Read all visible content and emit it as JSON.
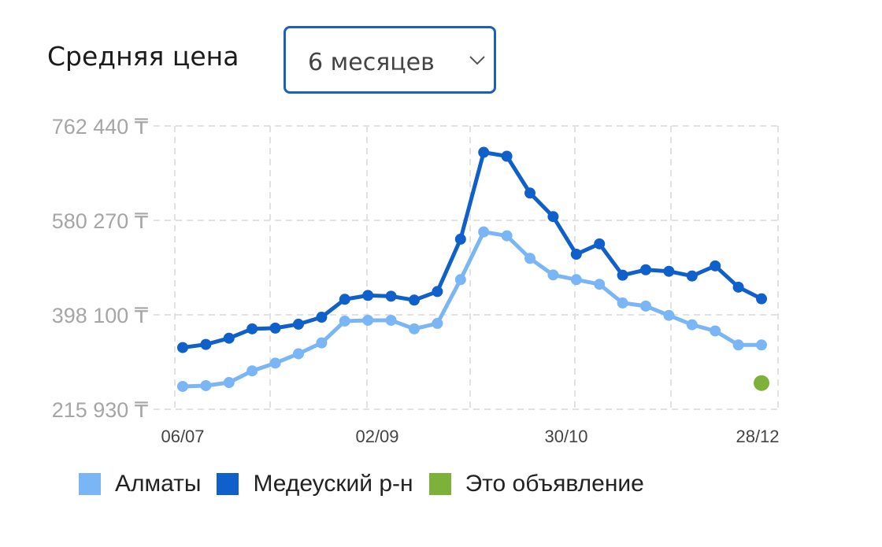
{
  "header": {
    "title": "Средняя цена",
    "period_select": {
      "value": "6 месяцев"
    }
  },
  "colors": {
    "almaty": "#7ab6f5",
    "medeu": "#1060cc",
    "listing": "#7cb23a",
    "select_border": "#1b5fbf",
    "grid": "#e2e2e2"
  },
  "chart_data": {
    "type": "line",
    "title": "Средняя цена",
    "xlabel": "",
    "ylabel": "",
    "currency": "₸",
    "y_ticks": [
      "762 440 ₸",
      "580 270 ₸",
      "398 100 ₸",
      "215 930 ₸"
    ],
    "y_tick_values": [
      762440,
      580270,
      398100,
      215930
    ],
    "ylim": [
      215930,
      762440
    ],
    "x_ticks": [
      "06/07",
      "02/09",
      "30/10",
      "28/12"
    ],
    "grid": true,
    "legend_position": "bottom",
    "series": [
      {
        "name": "Алматы",
        "color": "#7ab6f5",
        "values": [
          260000,
          261500,
          267500,
          290000,
          305000,
          323000,
          344000,
          386000,
          387500,
          387500,
          371000,
          381500,
          466000,
          558000,
          550500,
          507000,
          475000,
          466000,
          457000,
          421000,
          415000,
          397000,
          379000,
          367000,
          340000,
          340000
        ]
      },
      {
        "name": "Медеуский р-н",
        "color": "#1060cc",
        "values": [
          335000,
          341000,
          353000,
          371000,
          372500,
          380000,
          393500,
          428000,
          435500,
          434000,
          426500,
          443000,
          544000,
          711500,
          704000,
          633000,
          587500,
          515000,
          535000,
          474500,
          485000,
          482000,
          473000,
          492500,
          451500,
          429000
        ]
      },
      {
        "name": "Это объявление",
        "color": "#7cb23a",
        "values": [
          null,
          null,
          null,
          null,
          null,
          null,
          null,
          null,
          null,
          null,
          null,
          null,
          null,
          null,
          null,
          null,
          null,
          null,
          null,
          null,
          null,
          null,
          null,
          null,
          null,
          266500
        ]
      }
    ]
  },
  "legend": [
    {
      "label": "Алматы",
      "color": "#7ab6f5"
    },
    {
      "label": "Медеуский р-н",
      "color": "#1060cc"
    },
    {
      "label": "Это объявление",
      "color": "#7cb23a"
    }
  ]
}
